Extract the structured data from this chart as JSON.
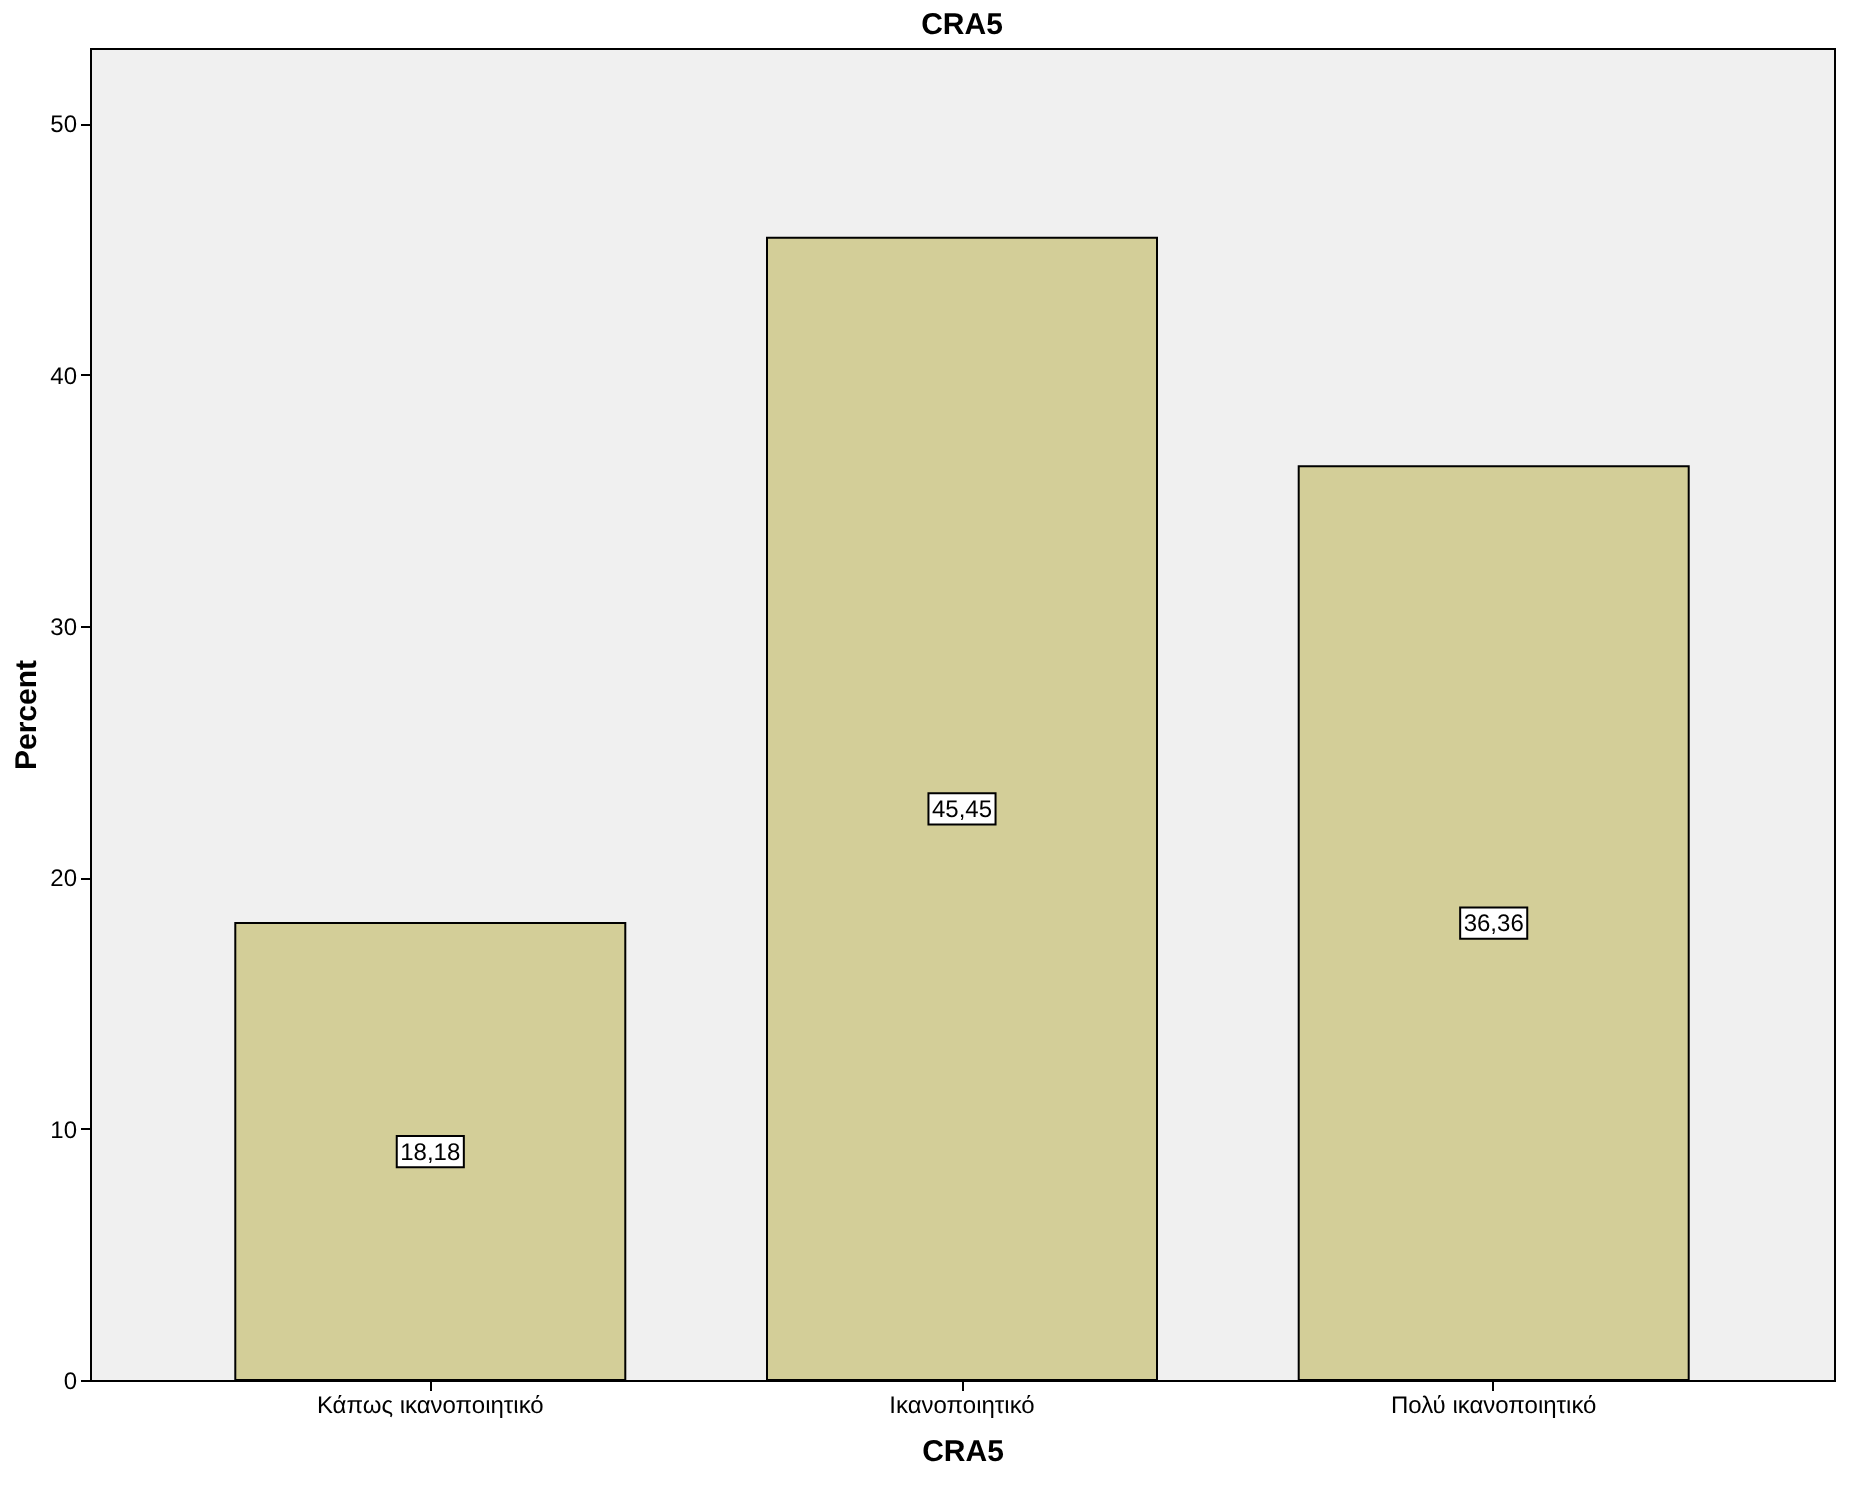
{
  "chart_data": {
    "type": "bar",
    "title": "CRA5",
    "xlabel": "CRA5",
    "ylabel": "Percent",
    "categories": [
      "Κάπως ικανοποιητικό",
      "Ικανοποιητικό",
      "Πολύ ικανοποιητικό"
    ],
    "values": [
      18.18,
      45.45,
      36.36
    ],
    "color": "#d3ce98",
    "value_labels": [
      "18,18",
      "45,45",
      "36,36"
    ],
    "ylim": [
      0,
      53
    ],
    "yticks": [
      0,
      10,
      20,
      30,
      40,
      50
    ],
    "grid": false
  }
}
